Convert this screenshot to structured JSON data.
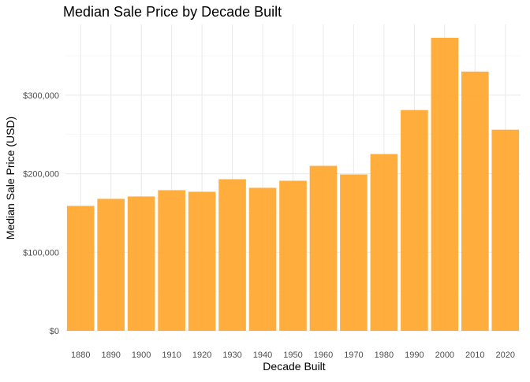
{
  "chart_data": {
    "type": "bar",
    "title": "Median Sale Price by Decade Built",
    "xlabel": "Decade Built",
    "ylabel": "Median Sale Price (USD)",
    "categories": [
      "1880",
      "1890",
      "1900",
      "1910",
      "1920",
      "1930",
      "1940",
      "1950",
      "1960",
      "1970",
      "1980",
      "1990",
      "2000",
      "2010",
      "2020"
    ],
    "values": [
      159000,
      168000,
      171000,
      179000,
      177000,
      193000,
      182000,
      191000,
      210000,
      199000,
      225000,
      281000,
      373000,
      330000,
      256000
    ],
    "ylim": [
      0,
      390000
    ],
    "y_ticks": [
      0,
      100000,
      200000,
      300000
    ],
    "y_tick_labels": [
      "$0",
      "$100,000",
      "$200,000",
      "$300,000"
    ],
    "bar_color": "#FFA62B",
    "grid": true,
    "legend": "none"
  }
}
